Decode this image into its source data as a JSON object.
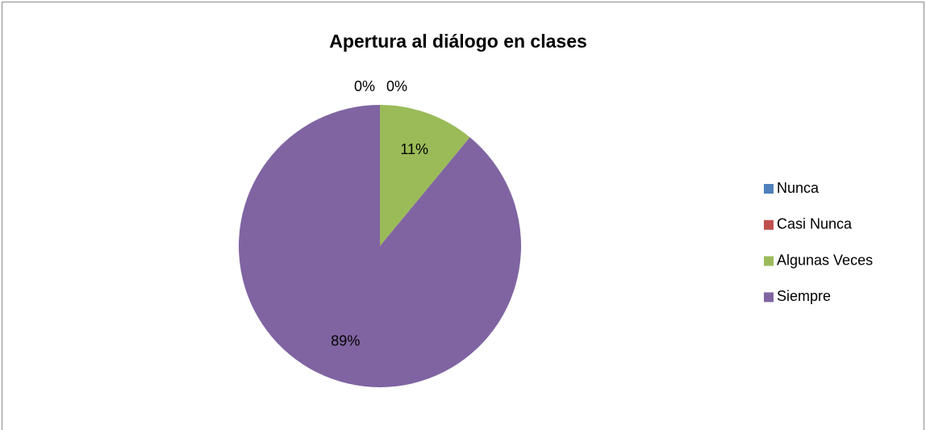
{
  "chart_data": {
    "type": "pie",
    "title": "Apertura al diálogo en clases",
    "categories": [
      "Nunca",
      "Casi Nunca",
      "Algunas Veces",
      "Siempre"
    ],
    "values": [
      0,
      0,
      11,
      89
    ],
    "value_labels": [
      "0%",
      "0%",
      "11%",
      "89%"
    ],
    "colors": [
      "#4f81bd",
      "#c0504d",
      "#9bbb59",
      "#8064a2"
    ],
    "legend": "right"
  }
}
